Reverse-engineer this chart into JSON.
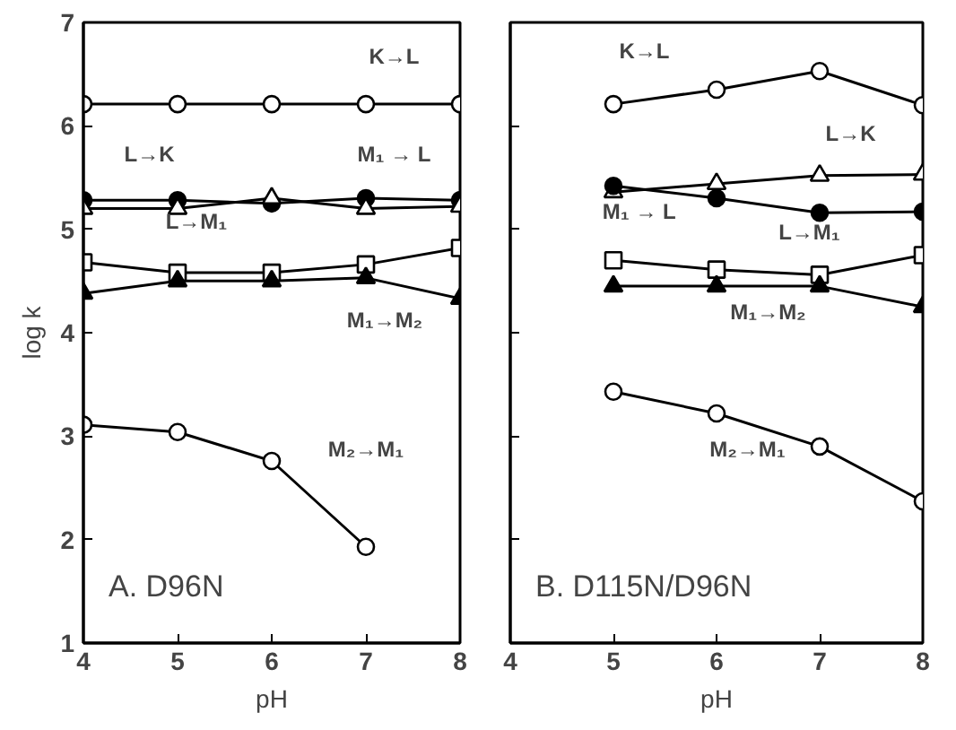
{
  "chart_data": [
    {
      "type": "line",
      "xlabel": "pH",
      "ylabel": "log k",
      "x": [
        4,
        5,
        6,
        7,
        8
      ],
      "xlim": [
        4,
        8
      ],
      "ylim": [
        1,
        7
      ],
      "xticks": [
        4,
        5,
        6,
        7,
        8
      ],
      "yticks": [
        1,
        2,
        3,
        4,
        5,
        6,
        7
      ],
      "grid": false,
      "line_style": "solid",
      "series": [
        {
          "color": "#000000",
          "marker": "circle",
          "values": [
            6.21,
            6.21,
            6.21,
            6.21,
            6.21
          ]
        },
        {
          "color": "#000000",
          "marker": "circle",
          "values": [
            5.28,
            5.28,
            5.25,
            5.3,
            5.28
          ]
        },
        {
          "color": "#000000",
          "marker": "triangle",
          "values": [
            5.2,
            5.2,
            5.3,
            5.2,
            5.22
          ]
        },
        {
          "color": "#000000",
          "marker": "square",
          "values": [
            4.68,
            4.58,
            4.58,
            4.66,
            4.82
          ]
        },
        {
          "color": "#000000",
          "marker": "triangle",
          "values": [
            4.38,
            4.5,
            4.5,
            4.53,
            4.33
          ]
        },
        {
          "color": "#000000",
          "marker": "circle",
          "values": [
            3.11,
            3.04,
            2.76,
            1.93,
            null
          ]
        }
      ],
      "annotations": [
        "K→L",
        "L→K",
        "M₁ → L",
        "L→M₁",
        "M₁→M₂",
        "M₂→M₁",
        "A. D96N"
      ]
    },
    {
      "type": "line",
      "xlabel": "pH",
      "x": [
        5,
        6,
        7,
        8
      ],
      "xlim": [
        4,
        8
      ],
      "ylim": [
        1,
        7
      ],
      "xticks": [
        4,
        5,
        6,
        7,
        8
      ],
      "yticks": [
        1,
        2,
        3,
        4,
        5,
        6,
        7
      ],
      "tick_labels": "x",
      "grid": false,
      "line_style": "solid",
      "series": [
        {
          "color": "#000000",
          "marker": "circle",
          "values": [
            6.21,
            6.35,
            6.53,
            6.2
          ]
        },
        {
          "color": "#000000",
          "marker": "triangle",
          "values": [
            5.36,
            5.44,
            5.52,
            5.53
          ]
        },
        {
          "color": "#000000",
          "marker": "circle",
          "values": [
            5.42,
            5.3,
            5.16,
            5.17
          ]
        },
        {
          "color": "#000000",
          "marker": "square",
          "values": [
            4.7,
            4.61,
            4.56,
            4.75
          ]
        },
        {
          "color": "#000000",
          "marker": "triangle",
          "values": [
            4.45,
            4.45,
            4.45,
            4.25
          ]
        },
        {
          "color": "#000000",
          "marker": "circle",
          "values": [
            3.43,
            3.22,
            2.9,
            2.37
          ]
        }
      ],
      "annotations": [
        "K→L",
        "L→K",
        "M₁ → L",
        "L→M₁",
        "M₁→M₂",
        "M₂→M₁",
        "B. D115N/D96N"
      ]
    }
  ]
}
